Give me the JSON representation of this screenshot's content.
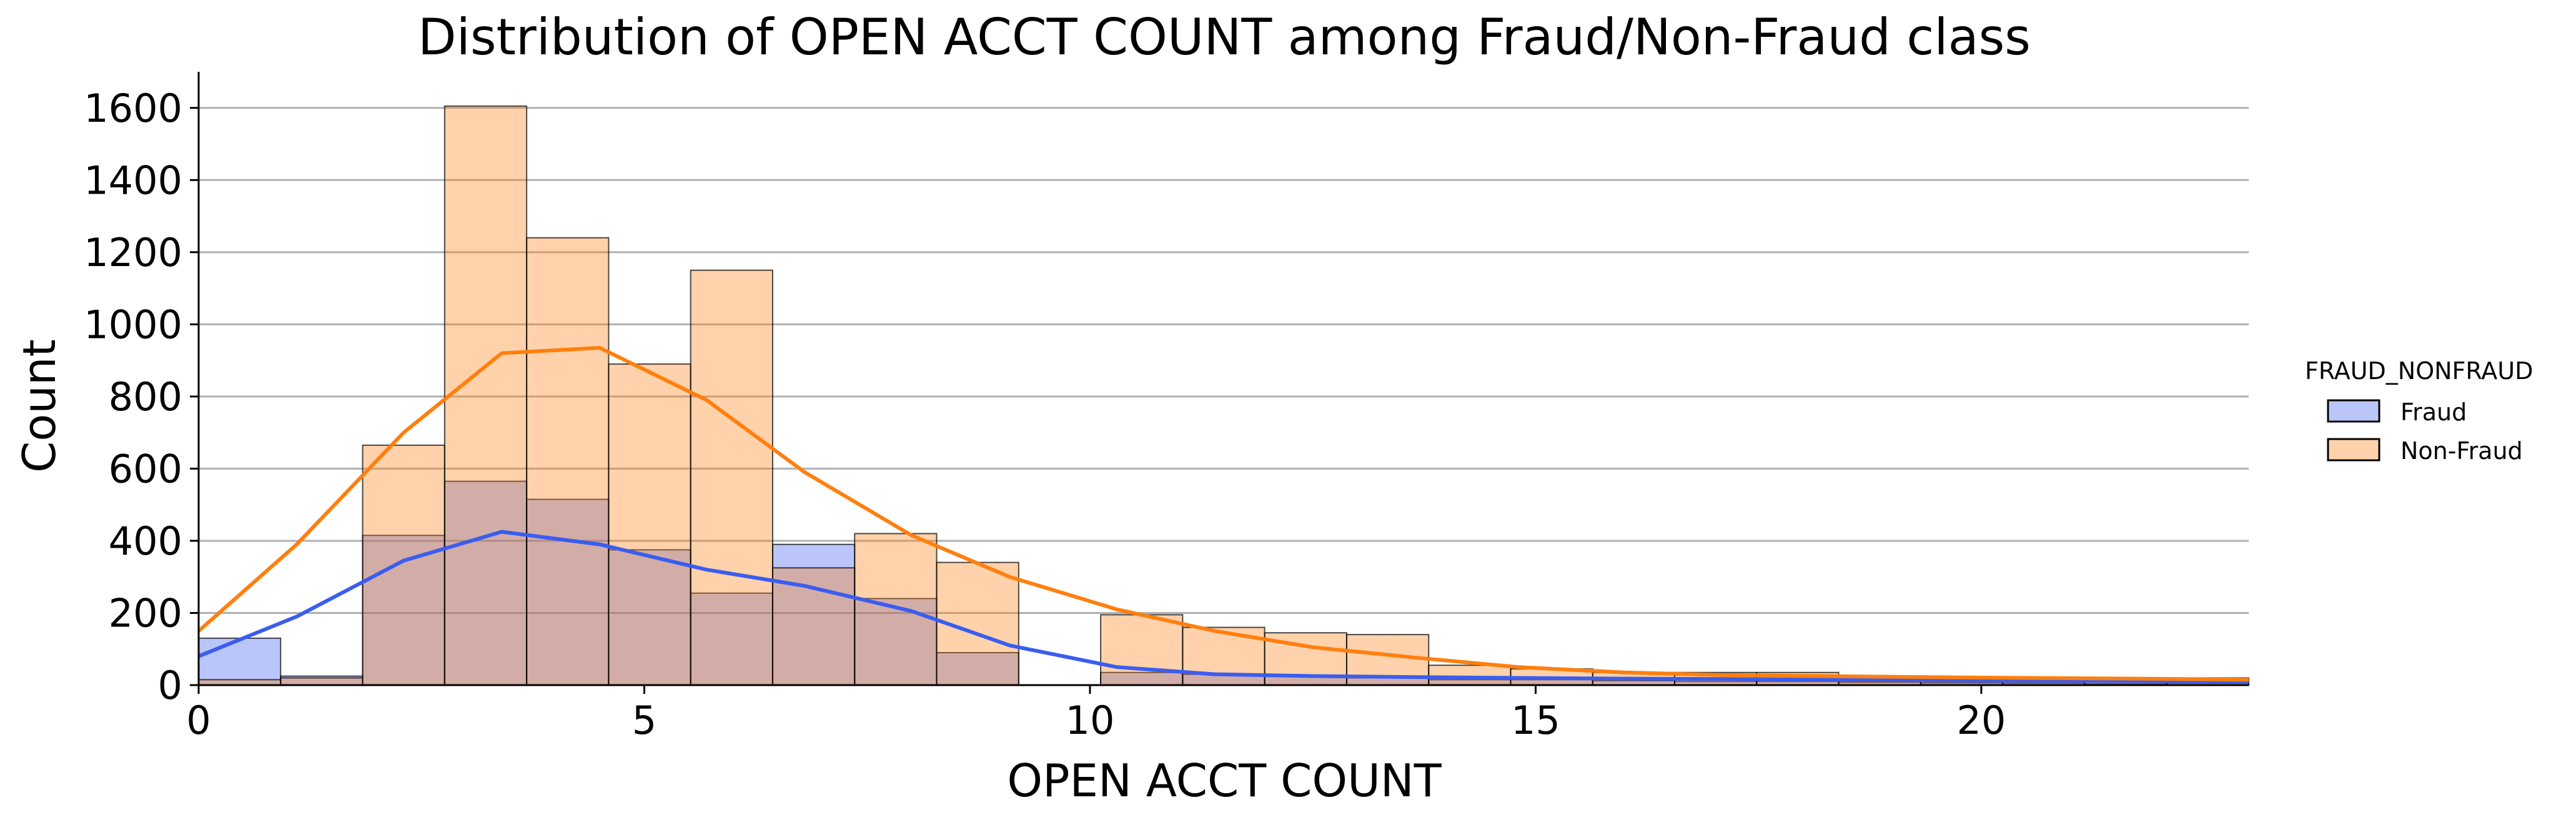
{
  "chart_data": {
    "type": "bar",
    "title": "Distribution of OPEN ACCT COUNT among Fraud/Non-Fraud class",
    "xlabel": "OPEN ACCT COUNT",
    "ylabel": "Count",
    "xlim": [
      0,
      23
    ],
    "ylim": [
      0,
      1700
    ],
    "xticks": [
      0,
      5,
      10,
      15,
      20
    ],
    "yticks": [
      0,
      200,
      400,
      600,
      800,
      1000,
      1200,
      1400,
      1600
    ],
    "grid": "horizontal",
    "legend": {
      "title": "FRAUD_NONFRAUD",
      "position": "right"
    },
    "bin_edges": [
      0,
      0.92,
      1.84,
      2.76,
      3.68,
      4.6,
      5.52,
      6.44,
      7.36,
      8.28,
      9.2,
      10.12,
      11.04,
      11.96,
      12.88,
      13.8,
      14.72,
      15.64,
      16.56,
      17.48,
      18.4,
      19.32,
      20.24,
      21.16,
      22.08,
      23
    ],
    "series": [
      {
        "name": "Fraud",
        "color": "#3a5df0",
        "values": [
          130,
          25,
          415,
          565,
          515,
          375,
          255,
          390,
          240,
          90,
          0,
          35,
          30,
          25,
          20,
          15,
          15,
          12,
          10,
          10,
          8,
          6,
          5,
          4,
          5
        ],
        "kde_x": [
          0,
          1.1,
          2.3,
          3.4,
          4.5,
          5.7,
          6.8,
          8.0,
          9.1,
          10.3,
          11.4,
          12.5,
          13.7,
          14.8,
          16.0,
          17.1,
          18.2,
          19.4,
          20.5,
          21.7,
          23
        ],
        "kde_y": [
          80,
          190,
          345,
          425,
          390,
          320,
          275,
          205,
          110,
          50,
          30,
          25,
          22,
          20,
          18,
          17,
          15,
          13,
          12,
          11,
          10
        ]
      },
      {
        "name": "Non-Fraud",
        "color": "#ff7f0e",
        "values": [
          15,
          20,
          665,
          1605,
          1240,
          890,
          1150,
          325,
          420,
          340,
          0,
          195,
          160,
          145,
          140,
          55,
          45,
          35,
          35,
          35,
          25,
          20,
          15,
          12,
          20
        ],
        "kde_x": [
          0,
          1.1,
          2.3,
          3.4,
          4.5,
          5.7,
          6.8,
          8.0,
          9.1,
          10.3,
          11.4,
          12.5,
          13.7,
          14.8,
          16.0,
          17.1,
          18.2,
          19.4,
          20.5,
          21.7,
          23
        ],
        "kde_y": [
          150,
          390,
          700,
          920,
          935,
          790,
          590,
          415,
          300,
          210,
          150,
          105,
          75,
          50,
          35,
          28,
          25,
          22,
          20,
          18,
          15
        ]
      }
    ]
  }
}
